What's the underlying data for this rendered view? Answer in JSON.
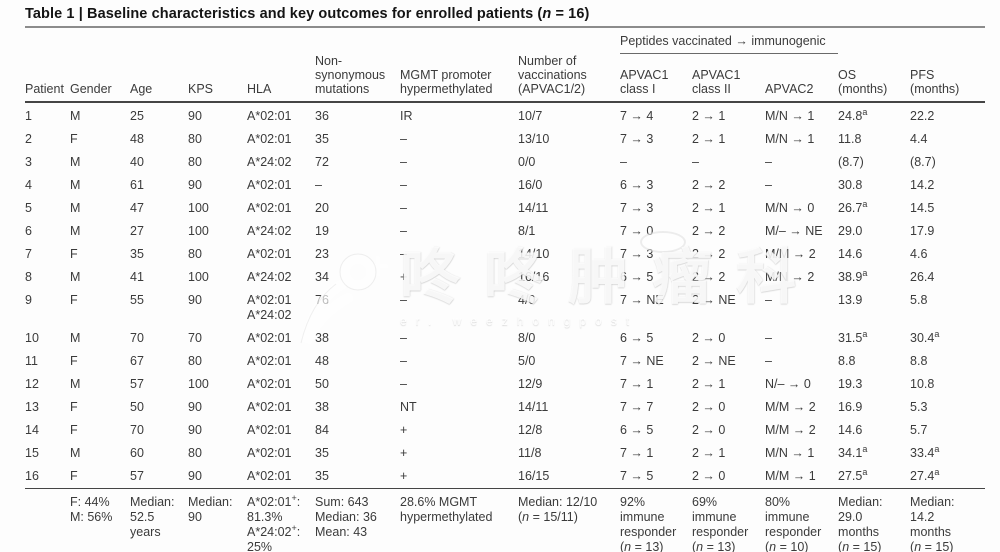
{
  "title": "Table 1 | Baseline characteristics and key outcomes for enrolled patients (n = 16)",
  "table": {
    "group_header": "Peptides vaccinated → immunogenic",
    "columns": [
      "Patient",
      "Gender",
      "Age",
      "KPS",
      "HLA",
      "Non-\nsynonymous\nmutations",
      "MGMT promoter\nhypermethylated",
      "Number of\nvaccinations\n(APVAC1/2)",
      "APVAC1\nclass I",
      "APVAC1\nclass II",
      "APVAC2",
      "OS (months)",
      "PFS (months)"
    ],
    "rows": [
      [
        "1",
        "M",
        "25",
        "90",
        "A*02:01",
        "36",
        "IR",
        "10/7",
        "7 → 4",
        "2 → 1",
        "M/N → 1",
        "24.8^a",
        "22.2"
      ],
      [
        "2",
        "F",
        "48",
        "80",
        "A*02:01",
        "35",
        "–",
        "13/10",
        "7 → 3",
        "2 → 1",
        "M/N → 1",
        "11.8",
        "4.4"
      ],
      [
        "3",
        "M",
        "40",
        "80",
        "A*24:02",
        "72",
        "–",
        "0/0",
        "–",
        "–",
        "–",
        "(8.7)",
        "(8.7)"
      ],
      [
        "4",
        "M",
        "61",
        "90",
        "A*02:01",
        "–",
        "–",
        "16/0",
        "6 → 3",
        "2 → 2",
        "–",
        "30.8",
        "14.2"
      ],
      [
        "5",
        "M",
        "47",
        "100",
        "A*02:01",
        "20",
        "–",
        "14/11",
        "7 → 3",
        "2 → 1",
        "M/N → 0",
        "26.7^a",
        "14.5"
      ],
      [
        "6",
        "M",
        "27",
        "100",
        "A*24:02",
        "19",
        "–",
        "8/1",
        "7 → 0",
        "2 → 2",
        "M/– → NE",
        "29.0",
        "17.9"
      ],
      [
        "7",
        "F",
        "35",
        "80",
        "A*02:01",
        "23",
        "–",
        "14/10",
        "7 → 3",
        "2 → 2",
        "M/M → 2",
        "14.6",
        "4.6"
      ],
      [
        "8",
        "M",
        "41",
        "100",
        "A*24:02",
        "34",
        "+",
        "16/16",
        "6 → 5",
        "2 → 2",
        "M/N → 2",
        "38.9^a",
        "26.4"
      ],
      [
        "9",
        "F",
        "55",
        "90",
        "A*02:01\nA*24:02",
        "76",
        "–",
        "4/0",
        "7 → NE",
        "2 → NE",
        "–",
        "13.9",
        "5.8"
      ],
      [
        "10",
        "M",
        "70",
        "70",
        "A*02:01",
        "38",
        "–",
        "8/0",
        "6 → 5",
        "2 → 0",
        "–",
        "31.5^a",
        "30.4^a"
      ],
      [
        "11",
        "F",
        "67",
        "80",
        "A*02:01",
        "48",
        "–",
        "5/0",
        "7 → NE",
        "2 → NE",
        "–",
        "8.8",
        "8.8"
      ],
      [
        "12",
        "M",
        "57",
        "100",
        "A*02:01",
        "50",
        "–",
        "12/9",
        "7 → 1",
        "2 → 1",
        "N/– → 0",
        "19.3",
        "10.8"
      ],
      [
        "13",
        "F",
        "50",
        "90",
        "A*02:01",
        "38",
        "NT",
        "14/11",
        "7 → 7",
        "2 → 0",
        "M/M → 2",
        "16.9",
        "5.3"
      ],
      [
        "14",
        "F",
        "70",
        "90",
        "A*02:01",
        "84",
        "+",
        "12/8",
        "6 → 5",
        "2 → 0",
        "M/M → 2",
        "14.6",
        "5.7"
      ],
      [
        "15",
        "M",
        "60",
        "80",
        "A*02:01",
        "35",
        "+",
        "11/8",
        "7 → 1",
        "2 → 1",
        "M/N → 1",
        "34.1^a",
        "33.4^a"
      ],
      [
        "16",
        "F",
        "57",
        "90",
        "A*02:01",
        "35",
        "+",
        "16/15",
        "7 → 5",
        "2 → 0",
        "M/M → 1",
        "27.5^a",
        "27.4^a"
      ]
    ],
    "summary": [
      "",
      "F: 44%\nM: 56%",
      "Median:\n52.5\nyears",
      "Median:\n90",
      "A*02:01^+:\n81.3%\nA*24:02^+:\n25%",
      "Sum: 643\nMedian: 36\nMean: 43",
      "28.6% MGMT\nhypermethylated",
      "Median: 12/10\n(n = 15/11)",
      "92%\nimmune\nresponder\n(n = 13)",
      "69%\nimmune\nresponder\n(n = 13)",
      "80%\nimmune\nresponder\n(n = 10)",
      "Median:\n29.0\nmonths\n(n = 15)",
      "Median:\n14.2\nmonths\n(n = 15)"
    ]
  },
  "watermark": {
    "text": "咚咚肿瘤科",
    "subtext": "er. weezhongpost",
    "logo": "person-swoosh-icon"
  },
  "colors": {
    "text": "#3b3b3b",
    "title": "#141414",
    "rule_dark": "#454545",
    "rule_medium": "#8c8c8c",
    "background": "#fdfdfd"
  }
}
